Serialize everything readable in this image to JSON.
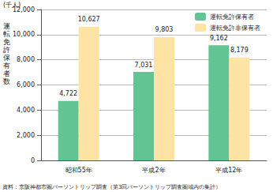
{
  "chart_data": {
    "type": "bar",
    "y_label": "運転免許保有者数",
    "y_unit": "(千人)",
    "source": "資料：京阪神都市圏パーソントリップ調査（第3回パーソントリップ調査圏域内の集計）",
    "categories": [
      "昭和55年",
      "平成2年",
      "平成12年"
    ],
    "series": [
      {
        "name": "運転免許保有者",
        "color": "#62c493",
        "values": [
          4722,
          7031,
          9162
        ],
        "value_labels": [
          "4,722",
          "7,031",
          "9,162"
        ]
      },
      {
        "name": "運転免許非保有者",
        "color": "#fde4a4",
        "values": [
          10627,
          9803,
          8179
        ],
        "value_labels": [
          "10,627",
          "9,803",
          "8,179"
        ]
      }
    ],
    "ylim": [
      0,
      12000
    ],
    "yticks": [
      0,
      {
        "value": 2000,
        "label": "2,000"
      },
      {
        "value": 4000,
        "label": "4,000"
      },
      {
        "value": 6000,
        "label": "6,000"
      },
      {
        "value": 8000,
        "label": "8,000"
      },
      {
        "value": 10000,
        "label": "10,000"
      },
      {
        "value": 12000,
        "label": "12,000"
      }
    ],
    "grid": true,
    "legend": "top-right",
    "data_labels": true
  }
}
